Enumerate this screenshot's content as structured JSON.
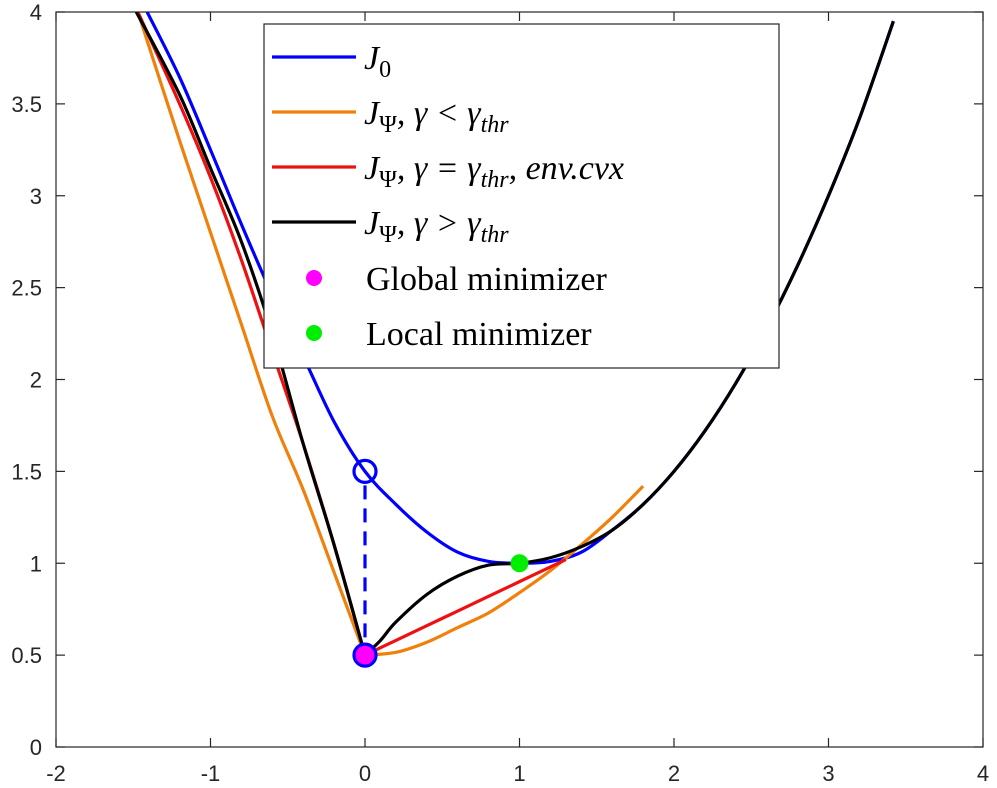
{
  "chart_data": {
    "type": "line",
    "title": "",
    "xlabel": "",
    "ylabel": "",
    "xlim": [
      -2,
      4
    ],
    "ylim": [
      0,
      4
    ],
    "x_ticks": [
      "-2",
      "-1",
      "0",
      "1",
      "2",
      "3",
      "4"
    ],
    "y_ticks": [
      "0",
      "0.5",
      "1",
      "1.5",
      "2",
      "2.5",
      "3",
      "3.5",
      "4"
    ],
    "grid": false,
    "legend_position": "top-center",
    "series": [
      {
        "name": "J_0",
        "legend": {
          "main": "J",
          "sub": "0",
          "rest": ""
        },
        "color": "#0000ff",
        "x": [
          -1.41,
          -1.2,
          -1.0,
          -0.8,
          -0.6,
          -0.4,
          -0.2,
          0.0,
          0.2,
          0.4,
          0.6,
          0.8,
          1.0,
          1.2,
          1.4,
          1.6,
          1.8,
          2.0,
          2.2,
          2.4,
          2.6,
          2.8,
          3.0,
          3.2,
          3.42
        ],
        "y": [
          4.0,
          3.645,
          3.25,
          2.845,
          2.46,
          2.125,
          1.77,
          1.5,
          1.32,
          1.17,
          1.06,
          1.01,
          1.0,
          1.01,
          1.06,
          1.18,
          1.32,
          1.5,
          1.72,
          1.98,
          2.28,
          2.62,
          3.0,
          3.42,
          3.95
        ]
      },
      {
        "name": "J_Ψ, γ < γ_thr",
        "legend": {
          "main": "J",
          "sub": "Ψ",
          "rest": ", γ < γ",
          "rest_sub": "thr"
        },
        "color": "#f0800c",
        "x": [
          -1.47,
          -1.2,
          -1.0,
          -0.8,
          -0.6,
          -0.4,
          -0.2,
          0.0,
          0.2,
          0.4,
          0.6,
          0.8,
          1.0,
          1.2,
          1.4,
          1.6,
          1.8
        ],
        "y": [
          4.0,
          3.3,
          2.8,
          2.3,
          1.8,
          1.4,
          0.95,
          0.5,
          0.515,
          0.57,
          0.65,
          0.73,
          0.84,
          0.96,
          1.1,
          1.25,
          1.42
        ]
      },
      {
        "name": "J_Ψ, γ = γ_thr, env.cvx",
        "legend": {
          "main": "J",
          "sub": "Ψ",
          "rest": ", γ = γ",
          "rest_sub": "thr",
          "tail": ", env.cvx"
        },
        "color": "#ee1111",
        "x": [
          -1.47,
          -1.2,
          -1.0,
          -0.8,
          -0.6,
          -0.4,
          -0.2,
          0.0,
          0.2,
          0.4,
          0.6,
          0.8,
          1.0,
          1.2,
          1.3
        ],
        "y": [
          4.0,
          3.5,
          3.1,
          2.65,
          2.15,
          1.65,
          1.1,
          0.5,
          0.58,
          0.66,
          0.74,
          0.82,
          0.9,
          0.98,
          1.02
        ]
      },
      {
        "name": "J_Ψ, γ > γ_thr",
        "legend": {
          "main": "J",
          "sub": "Ψ",
          "rest": ", γ > γ",
          "rest_sub": "thr"
        },
        "color": "#000000",
        "x": [
          -1.48,
          -1.2,
          -1.0,
          -0.8,
          -0.6,
          -0.4,
          -0.2,
          0.0,
          0.1,
          0.2,
          0.4,
          0.6,
          0.8,
          1.0,
          1.2,
          1.4,
          1.6,
          1.8,
          2.0,
          2.2,
          2.4,
          2.6,
          2.8,
          3.0,
          3.2,
          3.42
        ],
        "y": [
          4.0,
          3.55,
          3.15,
          2.75,
          2.25,
          1.65,
          1.1,
          0.5,
          0.58,
          0.68,
          0.83,
          0.93,
          0.99,
          1.0,
          1.03,
          1.09,
          1.18,
          1.32,
          1.5,
          1.72,
          1.98,
          2.28,
          2.62,
          3.0,
          3.42,
          3.95
        ]
      }
    ],
    "annotations": [
      {
        "type": "open-circle",
        "x": 0,
        "y": 1.5,
        "color": "#0000ff"
      },
      {
        "type": "dashed-line",
        "x1": 0,
        "y1": 1.5,
        "x2": 0,
        "y2": 0.5,
        "color": "#0000ff"
      },
      {
        "type": "open-circle",
        "x": 0,
        "y": 0.5,
        "color": "#0000ff"
      }
    ],
    "markers": [
      {
        "name": "Global minimizer",
        "x": 0,
        "y": 0.5,
        "color": "#ff00ff"
      },
      {
        "name": "Local minimizer",
        "x": 1,
        "y": 1.0,
        "color": "#00ee00"
      }
    ]
  }
}
